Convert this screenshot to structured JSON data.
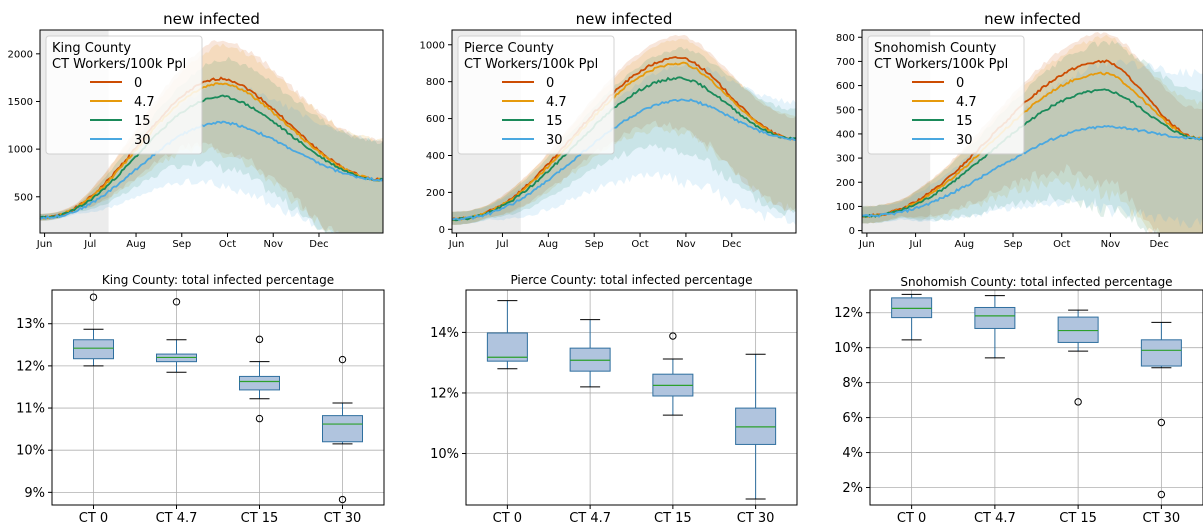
{
  "figure": {
    "line_colors": [
      "#cc4c02",
      "#e69a0c",
      "#1a8a5a",
      "#4aa8e0"
    ],
    "box_fill": "#b0c4de",
    "box_edge": "#2f6f9f",
    "median_color": "#2ca02c",
    "grid_color": "#b0b0b0",
    "shade_color": "#dddddd"
  },
  "chart_data": [
    {
      "type": "line",
      "title": "new infected",
      "legend_title": [
        "King County",
        "CT Workers/100k Ppl"
      ],
      "legend_position": "top-left",
      "x_ticks": [
        "Jun",
        "Jul",
        "Aug",
        "Sep",
        "Oct",
        "Nov",
        "Dec"
      ],
      "x_range": [
        0,
        7.5
      ],
      "y_ticks": [
        500,
        1000,
        1500,
        2000
      ],
      "ylim": [
        120,
        2250
      ],
      "shaded_region": [
        0,
        1.5
      ],
      "series": [
        {
          "name": "0",
          "peak_x": 4.0,
          "peak_y": 1740,
          "band_low": 1000,
          "band_high": 2150
        },
        {
          "name": "4.7",
          "peak_x": 4.0,
          "peak_y": 1690,
          "band_low": 950,
          "band_high": 2100
        },
        {
          "name": "15",
          "peak_x": 4.0,
          "peak_y": 1550,
          "band_low": 800,
          "band_high": 1950
        },
        {
          "name": "30",
          "peak_x": 4.0,
          "peak_y": 1280,
          "band_low": 600,
          "band_high": 1700
        }
      ],
      "start_y": 280,
      "end_y": 680
    },
    {
      "type": "line",
      "title": "new infected",
      "legend_title": [
        "Pierce County",
        "CT Workers/100k Ppl"
      ],
      "legend_position": "top-left",
      "x_ticks": [
        "Jun",
        "Jul",
        "Aug",
        "Sep",
        "Oct",
        "Nov",
        "Dec"
      ],
      "x_range": [
        0,
        7.5
      ],
      "y_ticks": [
        0,
        200,
        400,
        600,
        800,
        1000
      ],
      "ylim": [
        -20,
        1080
      ],
      "shaded_region": [
        0,
        1.5
      ],
      "series": [
        {
          "name": "0",
          "peak_x": 5.0,
          "peak_y": 930,
          "band_low": 550,
          "band_high": 1050
        },
        {
          "name": "4.7",
          "peak_x": 5.0,
          "peak_y": 900,
          "band_low": 520,
          "band_high": 1030
        },
        {
          "name": "15",
          "peak_x": 5.0,
          "peak_y": 820,
          "band_low": 420,
          "band_high": 980
        },
        {
          "name": "30",
          "peak_x": 5.1,
          "peak_y": 700,
          "band_low": 250,
          "band_high": 900
        }
      ],
      "start_y": 55,
      "end_y": 490
    },
    {
      "type": "line",
      "title": "new infected",
      "legend_title": [
        "Snohomish County",
        "CT Workers/100k Ppl"
      ],
      "legend_position": "top-left",
      "x_ticks": [
        "Jun",
        "Jul",
        "Aug",
        "Sep",
        "Oct",
        "Nov",
        "Dec"
      ],
      "x_range": [
        0,
        7.0
      ],
      "y_ticks": [
        0,
        100,
        200,
        300,
        400,
        500,
        600,
        700,
        800
      ],
      "ylim": [
        -10,
        830
      ],
      "shaded_region": [
        0,
        1.4
      ],
      "series": [
        {
          "name": "0",
          "peak_x": 5.0,
          "peak_y": 700,
          "band_low": 200,
          "band_high": 820
        },
        {
          "name": "4.7",
          "peak_x": 5.0,
          "peak_y": 650,
          "band_low": 150,
          "band_high": 800
        },
        {
          "name": "15",
          "peak_x": 5.0,
          "peak_y": 580,
          "band_low": 80,
          "band_high": 780
        },
        {
          "name": "30",
          "peak_x": 5.1,
          "peak_y": 430,
          "band_low": 80,
          "band_high": 700
        }
      ],
      "start_y": 60,
      "end_y": 380
    },
    {
      "type": "box",
      "title": "King County: total infected percentage",
      "categories": [
        "CT 0",
        "CT 4.7",
        "CT 15",
        "CT 30"
      ],
      "y_ticks": [
        "9%",
        "10%",
        "11%",
        "12%",
        "13%"
      ],
      "y_tick_values": [
        9,
        10,
        11,
        12,
        13
      ],
      "ylim": [
        8.7,
        13.8
      ],
      "boxes": [
        {
          "whislo": 12.0,
          "q1": 12.17,
          "med": 12.42,
          "q3": 12.62,
          "whishi": 12.87,
          "fliers": [
            13.63
          ]
        },
        {
          "whislo": 11.85,
          "q1": 12.1,
          "med": 12.2,
          "q3": 12.28,
          "whishi": 12.62,
          "fliers": [
            13.52
          ]
        },
        {
          "whislo": 11.22,
          "q1": 11.43,
          "med": 11.63,
          "q3": 11.75,
          "whishi": 12.1,
          "fliers": [
            12.63,
            10.75
          ]
        },
        {
          "whislo": 10.15,
          "q1": 10.2,
          "med": 10.62,
          "q3": 10.82,
          "whishi": 11.12,
          "fliers": [
            12.15,
            8.83
          ]
        }
      ]
    },
    {
      "type": "box",
      "title": "Pierce County: total infected percentage",
      "categories": [
        "CT 0",
        "CT 4.7",
        "CT 15",
        "CT 30"
      ],
      "y_ticks": [
        "10%",
        "12%",
        "14%"
      ],
      "y_tick_values": [
        10,
        12,
        14
      ],
      "ylim": [
        8.3,
        15.4
      ],
      "boxes": [
        {
          "whislo": 12.8,
          "q1": 13.05,
          "med": 13.18,
          "q3": 13.98,
          "whishi": 15.05,
          "fliers": []
        },
        {
          "whislo": 12.2,
          "q1": 12.72,
          "med": 13.08,
          "q3": 13.48,
          "whishi": 14.42,
          "fliers": []
        },
        {
          "whislo": 11.27,
          "q1": 11.9,
          "med": 12.25,
          "q3": 12.62,
          "whishi": 13.12,
          "fliers": [
            13.88
          ]
        },
        {
          "whislo": 8.5,
          "q1": 10.3,
          "med": 10.88,
          "q3": 11.5,
          "whishi": 13.28,
          "fliers": []
        }
      ]
    },
    {
      "type": "box",
      "title": "Snohomish County: total infected percentage",
      "categories": [
        "CT 0",
        "CT 4.7",
        "CT 15",
        "CT 30"
      ],
      "y_ticks": [
        "2%",
        "4%",
        "6%",
        "8%",
        "10%",
        "12%"
      ],
      "y_tick_values": [
        2,
        4,
        6,
        8,
        10,
        12
      ],
      "ylim": [
        1.0,
        13.3
      ],
      "boxes": [
        {
          "whislo": 10.45,
          "q1": 11.72,
          "med": 12.25,
          "q3": 12.85,
          "whishi": 13.05,
          "fliers": []
        },
        {
          "whislo": 9.42,
          "q1": 11.1,
          "med": 11.82,
          "q3": 12.3,
          "whishi": 12.98,
          "fliers": []
        },
        {
          "whislo": 9.8,
          "q1": 10.3,
          "med": 10.98,
          "q3": 11.75,
          "whishi": 12.15,
          "fliers": [
            6.9
          ]
        },
        {
          "whislo": 8.85,
          "q1": 8.95,
          "med": 9.85,
          "q3": 10.45,
          "whishi": 11.45,
          "fliers": [
            5.72,
            1.6
          ]
        }
      ]
    }
  ]
}
